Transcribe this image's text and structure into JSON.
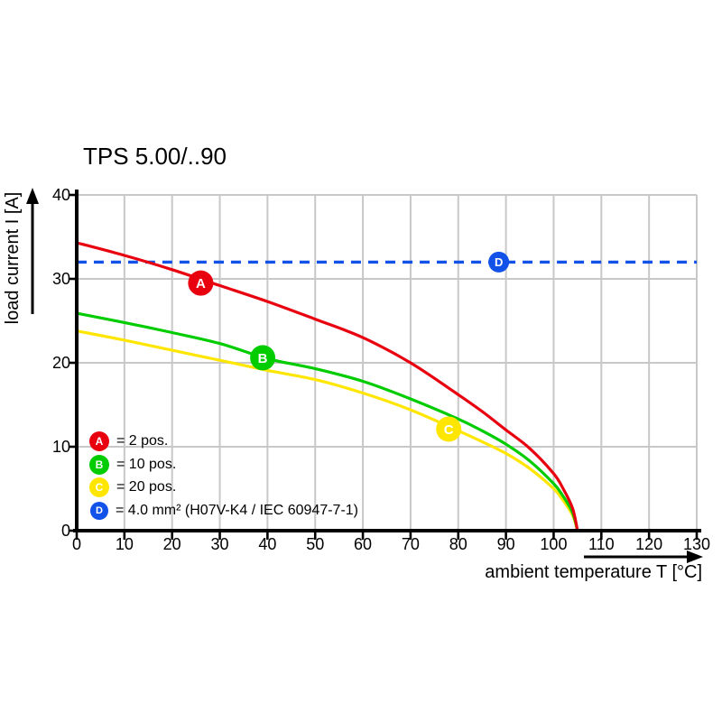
{
  "title": "TPS 5.00/..90",
  "colors": {
    "red": "#e8000f",
    "green": "#00cc00",
    "yellow": "#ffe600",
    "blue": "#1252e8",
    "grid": "#c8c8c8",
    "axis": "#000000"
  },
  "legend": {
    "items": [
      {
        "id": "A",
        "color": "#e8000f",
        "label": "= 2 pos."
      },
      {
        "id": "B",
        "color": "#00cc00",
        "label": "= 10 pos."
      },
      {
        "id": "C",
        "color": "#ffe600",
        "label": "= 20 pos."
      },
      {
        "id": "D",
        "color": "#1252e8",
        "label": "= 4.0 mm² (H07V-K4 / IEC 60947-7-1)"
      }
    ]
  },
  "chart_data": {
    "type": "line",
    "title": "TPS 5.00/..90",
    "xlabel": "ambient temperature T [°C]",
    "ylabel": "load current I [A]",
    "xlim": [
      0,
      130
    ],
    "ylim": [
      0,
      40
    ],
    "x_ticks": [
      0,
      10,
      20,
      30,
      40,
      50,
      60,
      70,
      80,
      90,
      100,
      110,
      120,
      130
    ],
    "y_ticks": [
      0,
      10,
      20,
      30,
      40
    ],
    "grid": true,
    "legend_position": "inside-bottom-left",
    "series": [
      {
        "id": "A",
        "name": "2 pos.",
        "color": "#e8000f",
        "line_style": "solid",
        "points": [
          [
            0,
            34.3
          ],
          [
            10,
            32.8
          ],
          [
            20,
            31.1
          ],
          [
            30,
            29.2
          ],
          [
            40,
            27.3
          ],
          [
            50,
            25.2
          ],
          [
            60,
            23.0
          ],
          [
            70,
            20.0
          ],
          [
            80,
            16.2
          ],
          [
            85,
            14.2
          ],
          [
            90,
            12.0
          ],
          [
            95,
            9.8
          ],
          [
            100,
            6.8
          ],
          [
            102,
            5.0
          ],
          [
            104,
            2.6
          ],
          [
            105,
            0
          ]
        ]
      },
      {
        "id": "B",
        "name": "10 pos.",
        "color": "#00cc00",
        "line_style": "solid",
        "points": [
          [
            0,
            25.9
          ],
          [
            10,
            24.8
          ],
          [
            20,
            23.6
          ],
          [
            30,
            22.3
          ],
          [
            40,
            20.5
          ],
          [
            50,
            19.3
          ],
          [
            60,
            17.8
          ],
          [
            70,
            15.7
          ],
          [
            80,
            13.3
          ],
          [
            85,
            11.9
          ],
          [
            90,
            10.3
          ],
          [
            95,
            8.3
          ],
          [
            100,
            5.6
          ],
          [
            102,
            4.1
          ],
          [
            104,
            2.1
          ],
          [
            105,
            0
          ]
        ]
      },
      {
        "id": "C",
        "name": "20 pos.",
        "color": "#ffe600",
        "line_style": "solid",
        "points": [
          [
            0,
            23.8
          ],
          [
            10,
            22.7
          ],
          [
            20,
            21.5
          ],
          [
            30,
            20.3
          ],
          [
            40,
            19.1
          ],
          [
            50,
            18.0
          ],
          [
            60,
            16.4
          ],
          [
            70,
            14.4
          ],
          [
            80,
            11.9
          ],
          [
            85,
            10.6
          ],
          [
            90,
            9.2
          ],
          [
            95,
            7.4
          ],
          [
            100,
            5.0
          ],
          [
            102,
            3.6
          ],
          [
            104,
            1.8
          ],
          [
            105,
            0
          ]
        ]
      },
      {
        "id": "D",
        "name": "4.0 mm² (H07V-K4 / IEC 60947-7-1)",
        "color": "#1252e8",
        "line_style": "dashed",
        "points": [
          [
            0,
            32
          ],
          [
            130,
            32
          ]
        ]
      }
    ],
    "point_markers": [
      {
        "id": "A",
        "x": 26,
        "y": 29.5,
        "color": "#e8000f"
      },
      {
        "id": "B",
        "x": 39,
        "y": 20.6,
        "color": "#00cc00"
      },
      {
        "id": "C",
        "x": 78,
        "y": 12.1,
        "color": "#ffe600"
      },
      {
        "id": "D",
        "x": 88.5,
        "y": 32,
        "color": "#1252e8"
      }
    ]
  }
}
